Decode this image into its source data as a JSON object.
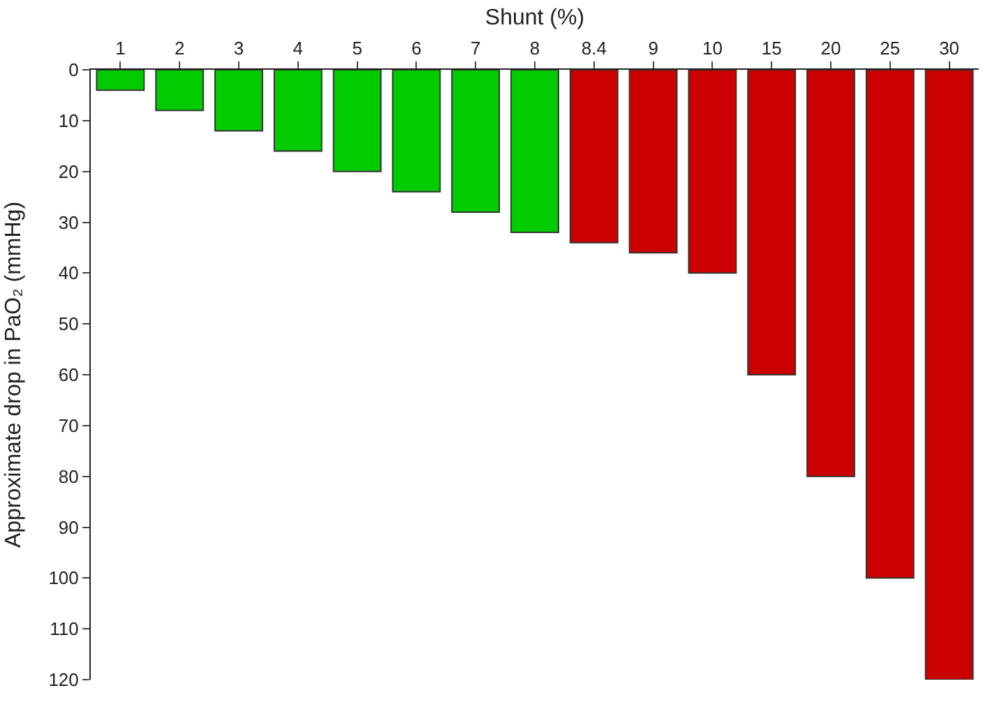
{
  "chart_data": {
    "type": "bar",
    "xlabel": "Shunt (%)",
    "ylabel": "Approximate drop in PaO₂ (mmHg)",
    "categories": [
      "1",
      "2",
      "3",
      "4",
      "5",
      "6",
      "7",
      "8",
      "8.4",
      "9",
      "10",
      "15",
      "20",
      "25",
      "30"
    ],
    "values": [
      4,
      8,
      12,
      16,
      20,
      24,
      28,
      32,
      34,
      36,
      40,
      60,
      80,
      100,
      120
    ],
    "colors": [
      "#00cc00",
      "#00cc00",
      "#00cc00",
      "#00cc00",
      "#00cc00",
      "#00cc00",
      "#00cc00",
      "#00cc00",
      "#cc0000",
      "#cc0000",
      "#cc0000",
      "#cc0000",
      "#cc0000",
      "#cc0000",
      "#cc0000"
    ],
    "ylim": [
      120,
      0
    ],
    "yticks": [
      0,
      10,
      20,
      30,
      40,
      50,
      60,
      70,
      80,
      90,
      100,
      110,
      120
    ],
    "legend": false
  }
}
